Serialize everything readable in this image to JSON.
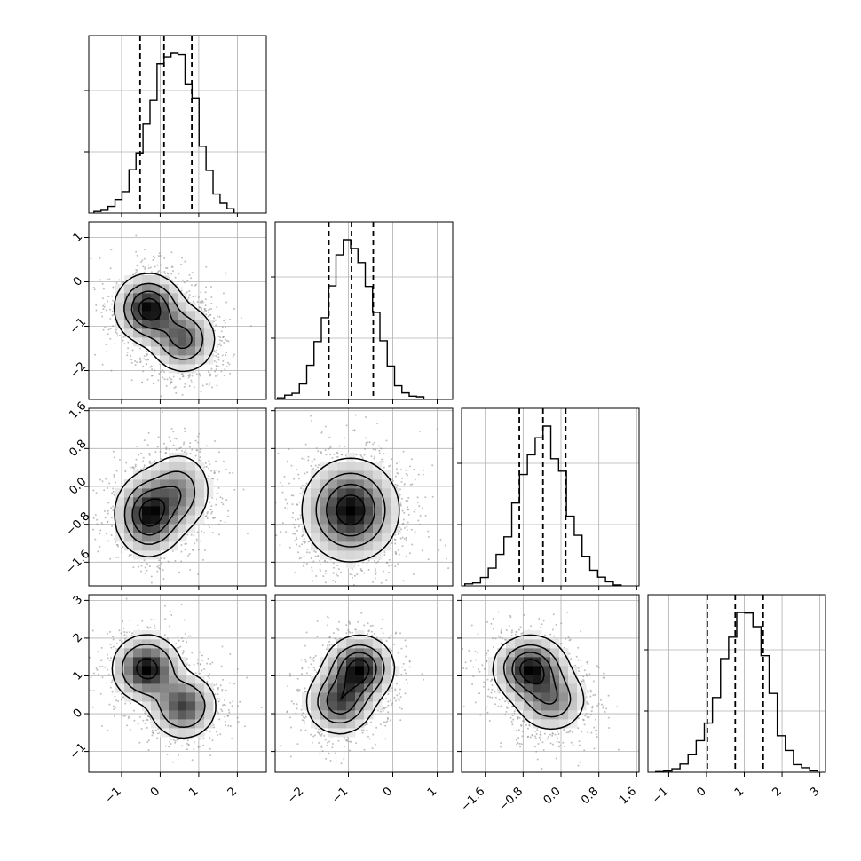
{
  "colors": {
    "line": "#000000",
    "grid": "#b0b0b0",
    "background": "#ffffff",
    "density_dark": "#000000",
    "density_light": "#ffffff"
  },
  "chart_data": {
    "type": "corner",
    "grid": true,
    "params": [
      {
        "range": [
          -1.85,
          2.75
        ],
        "ticks": [
          -1,
          0,
          1,
          2
        ],
        "tick_labels": [
          "−1",
          "0",
          "1",
          "2"
        ],
        "mean": 0.1,
        "sd": 0.55,
        "quantiles": [
          -0.52,
          0.1,
          0.82
        ]
      },
      {
        "range": [
          -2.65,
          1.35
        ],
        "ticks": [
          -2,
          -1,
          0,
          1
        ],
        "tick_labels": [
          "−2",
          "−1",
          "0",
          "1"
        ],
        "mean": -0.95,
        "sd": 0.5,
        "quantiles": [
          -1.44,
          -0.93,
          -0.44
        ]
      },
      {
        "range": [
          -2.1,
          1.65
        ],
        "ticks": [
          -1.6,
          -0.8,
          0.0,
          0.8,
          1.6
        ],
        "tick_labels": [
          "−1.6",
          "−0.8",
          "0.0",
          "0.8",
          "1.6"
        ],
        "mean": -0.38,
        "sd": 0.5,
        "quantiles": [
          -0.88,
          -0.38,
          0.1
        ]
      },
      {
        "range": [
          -1.55,
          3.15
        ],
        "ticks": [
          -1,
          0,
          1,
          2,
          3
        ],
        "tick_labels": [
          "−1",
          "0",
          "1",
          "2",
          "3"
        ],
        "mean": 0.8,
        "sd": 0.65,
        "quantiles": [
          0.02,
          0.76,
          1.5
        ]
      }
    ],
    "pairs": [
      {
        "row": 1,
        "col": 0,
        "modes": [
          {
            "x": -0.3,
            "y": -0.6,
            "w": 1.0
          },
          {
            "x": 0.6,
            "y": -1.3,
            "w": 0.7
          }
        ],
        "spread": [
          0.45,
          0.4
        ]
      },
      {
        "row": 2,
        "col": 0,
        "modes": [
          {
            "x": -0.3,
            "y": -0.6,
            "w": 1.0
          },
          {
            "x": 0.5,
            "y": -0.1,
            "w": 0.55
          }
        ],
        "spread": [
          0.45,
          0.45
        ]
      },
      {
        "row": 2,
        "col": 1,
        "modes": [
          {
            "x": -0.95,
            "y": -0.5,
            "w": 1.0
          }
        ],
        "spread": [
          0.55,
          0.55
        ]
      },
      {
        "row": 3,
        "col": 0,
        "modes": [
          {
            "x": -0.35,
            "y": 1.2,
            "w": 1.0
          },
          {
            "x": 0.6,
            "y": 0.2,
            "w": 0.8
          }
        ],
        "spread": [
          0.45,
          0.45
        ]
      },
      {
        "row": 3,
        "col": 1,
        "modes": [
          {
            "x": -0.75,
            "y": 1.2,
            "w": 1.0
          },
          {
            "x": -1.2,
            "y": 0.3,
            "w": 0.8
          }
        ],
        "spread": [
          0.4,
          0.45
        ]
      },
      {
        "row": 3,
        "col": 2,
        "modes": [
          {
            "x": -0.65,
            "y": 1.2,
            "w": 1.0
          },
          {
            "x": -0.2,
            "y": 0.35,
            "w": 0.6
          }
        ],
        "spread": [
          0.4,
          0.45
        ]
      }
    ]
  }
}
